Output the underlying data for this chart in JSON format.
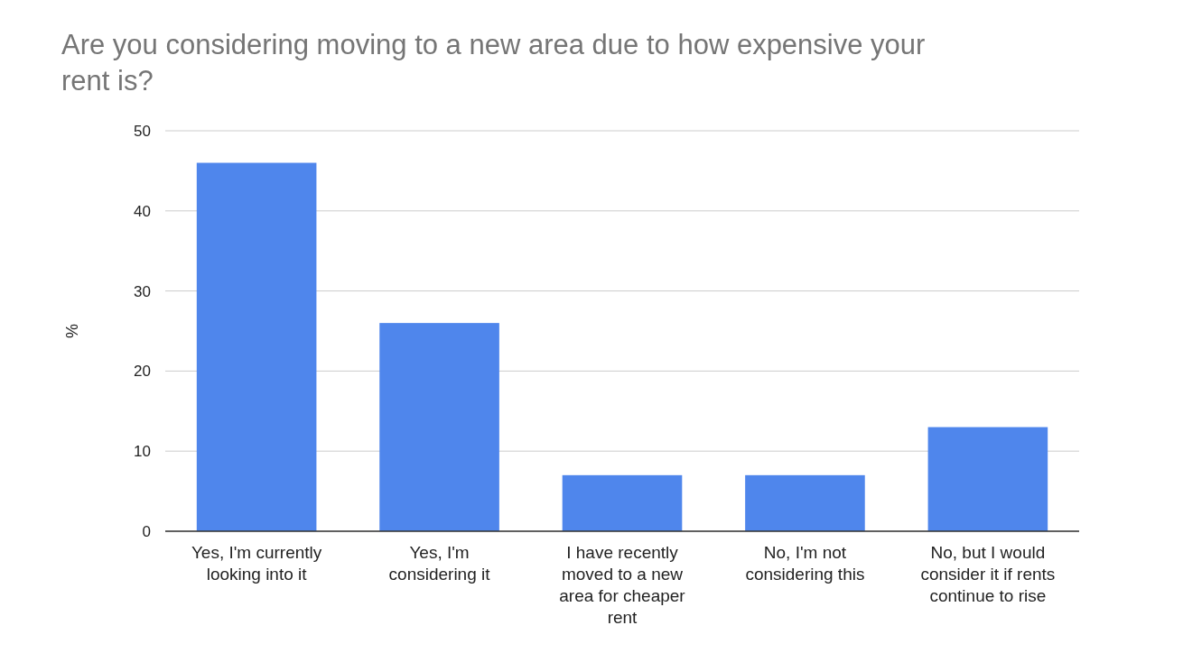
{
  "chart_data": {
    "type": "bar",
    "title": "Are you considering moving to a new area due to how expensive your rent is?",
    "ylabel": "%",
    "categories": [
      "Yes, I'm currently looking into it",
      "Yes, I'm considering it",
      "I have recently moved to a new area for cheaper rent",
      "No, I'm not considering this",
      "No, but I would consider it if rents continue to rise"
    ],
    "values": [
      46,
      26,
      7,
      7,
      13
    ],
    "color": "#4f86ec",
    "ylim": [
      0,
      50
    ],
    "yticks": [
      0,
      10,
      20,
      30,
      40,
      50
    ],
    "grid": "y"
  }
}
